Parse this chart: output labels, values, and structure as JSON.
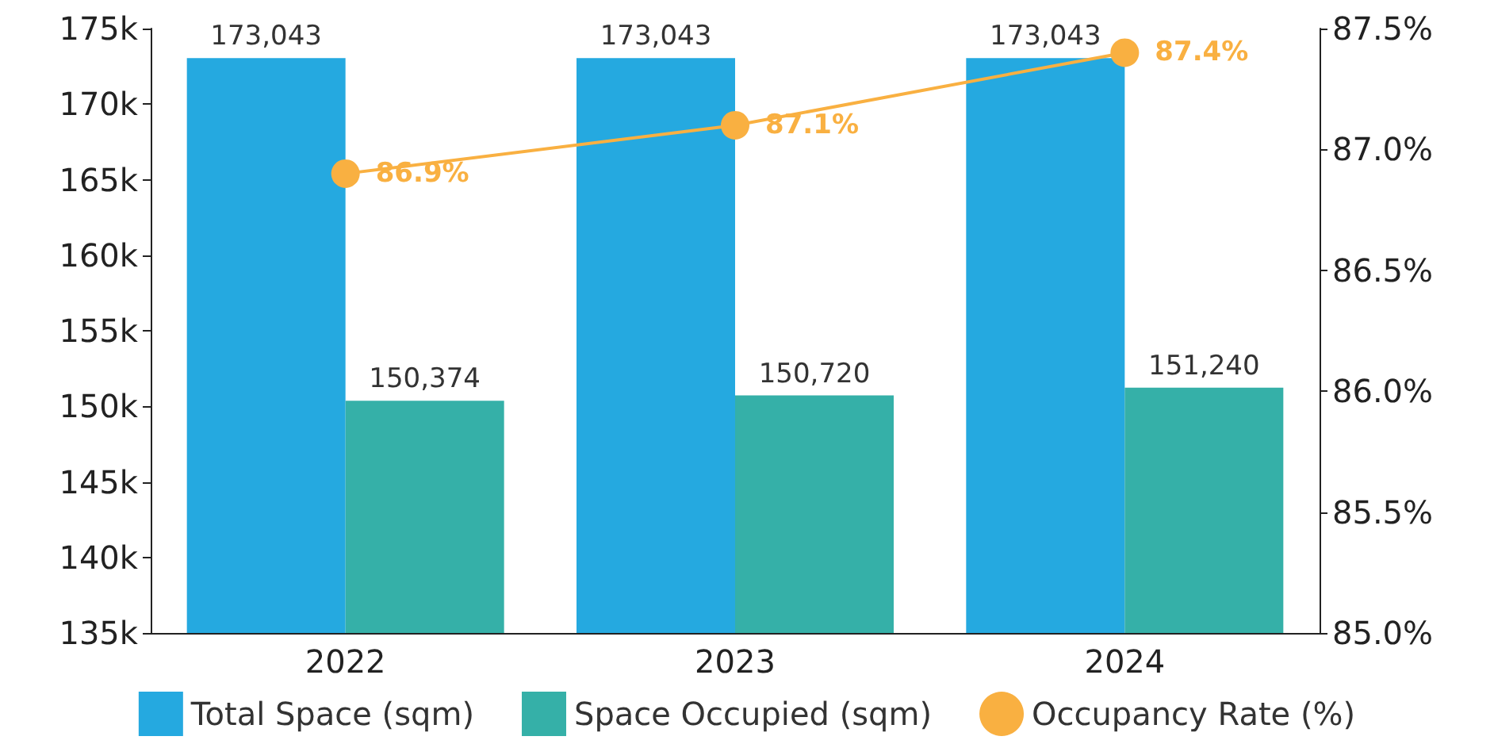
{
  "chart_data": {
    "type": "bar",
    "categories": [
      "2022",
      "2023",
      "2024"
    ],
    "series": [
      {
        "name": "Total Space (sqm)",
        "color": "#25a9e0",
        "values": [
          173043,
          173043,
          173043
        ],
        "value_labels": [
          "173,043",
          "173,043",
          "173,043"
        ]
      },
      {
        "name": "Space Occupied (sqm)",
        "color": "#35b0a8",
        "values": [
          150374,
          150720,
          151240
        ],
        "value_labels": [
          "150,374",
          "150,720",
          "151,240"
        ]
      },
      {
        "name": "Occupancy Rate (%)",
        "type": "line",
        "axis": "y2",
        "color": "#f9b041",
        "marker": "circle",
        "values": [
          86.9,
          87.1,
          87.4
        ],
        "value_labels": [
          "86.9%",
          "87.1%",
          "87.4%"
        ]
      }
    ],
    "ylim": [
      135000,
      175000
    ],
    "yticks": [
      {
        "value": 135000,
        "label": "135k"
      },
      {
        "value": 140000,
        "label": "140k"
      },
      {
        "value": 145000,
        "label": "145k"
      },
      {
        "value": 150000,
        "label": "150k"
      },
      {
        "value": 155000,
        "label": "155k"
      },
      {
        "value": 160000,
        "label": "160k"
      },
      {
        "value": 165000,
        "label": "165k"
      },
      {
        "value": 170000,
        "label": "170k"
      },
      {
        "value": 175000,
        "label": "175k"
      }
    ],
    "y2lim": [
      85,
      87.5
    ],
    "y2ticks": [
      {
        "value": 85,
        "label": "85.0%"
      },
      {
        "value": 85.5,
        "label": "85.5%"
      },
      {
        "value": 86,
        "label": "86.0%"
      },
      {
        "value": 86.5,
        "label": "86.5%"
      },
      {
        "value": 87,
        "label": "87.0%"
      },
      {
        "value": 87.5,
        "label": "87.5%"
      }
    ],
    "grid": false,
    "legend": "bottom"
  }
}
